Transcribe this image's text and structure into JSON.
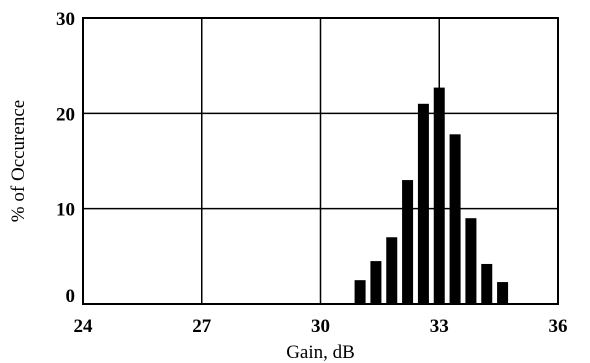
{
  "chart_data": {
    "type": "bar",
    "title": "",
    "xlabel": "Gain, dB",
    "ylabel": "% of Occurence",
    "xlim": [
      24,
      36
    ],
    "ylim": [
      0,
      30
    ],
    "xticks": [
      24,
      27,
      30,
      33,
      36
    ],
    "yticks": [
      0,
      10,
      20,
      30
    ],
    "grid": true,
    "bin_width": 0.4,
    "x": [
      31.0,
      31.4,
      31.8,
      32.2,
      32.6,
      33.0,
      33.4,
      33.8,
      34.2,
      34.6
    ],
    "values": [
      2.5,
      4.5,
      7,
      13,
      21,
      22.7,
      17.8,
      9,
      4.2,
      2.3
    ],
    "colors": {
      "bar": "#000000",
      "grid": "#000000"
    }
  }
}
